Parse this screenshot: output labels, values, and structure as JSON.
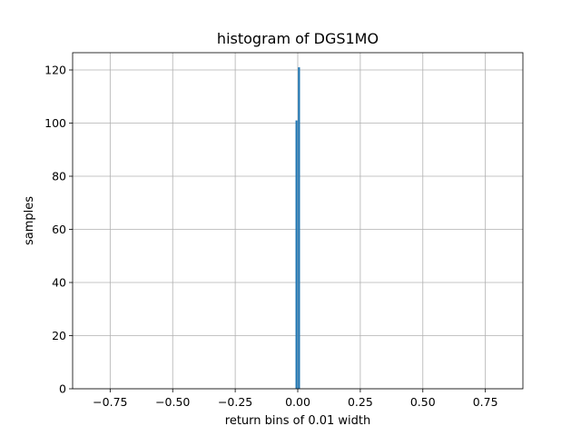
{
  "chart_data": {
    "type": "bar",
    "title": "histogram of DGS1MO",
    "xlabel": "return bins of 0.01 width",
    "ylabel": "samples",
    "xlim": [
      -0.9,
      0.9
    ],
    "ylim": [
      0,
      126.5
    ],
    "grid": true,
    "bar_color": "#1f77b4",
    "bin_width": 0.01,
    "bins": [
      {
        "x0": -0.01,
        "x1": 0.0,
        "value": 101
      },
      {
        "x0": 0.0,
        "x1": 0.01,
        "value": 121
      }
    ],
    "x_ticks": [
      {
        "value": -0.75,
        "label": "−0.75"
      },
      {
        "value": -0.5,
        "label": "−0.50"
      },
      {
        "value": -0.25,
        "label": "−0.25"
      },
      {
        "value": 0.0,
        "label": "0.00"
      },
      {
        "value": 0.25,
        "label": "0.25"
      },
      {
        "value": 0.5,
        "label": "0.50"
      },
      {
        "value": 0.75,
        "label": "0.75"
      }
    ],
    "y_ticks": [
      {
        "value": 0,
        "label": "0"
      },
      {
        "value": 20,
        "label": "20"
      },
      {
        "value": 40,
        "label": "40"
      },
      {
        "value": 60,
        "label": "60"
      },
      {
        "value": 80,
        "label": "80"
      },
      {
        "value": 100,
        "label": "100"
      },
      {
        "value": 120,
        "label": "120"
      }
    ]
  }
}
